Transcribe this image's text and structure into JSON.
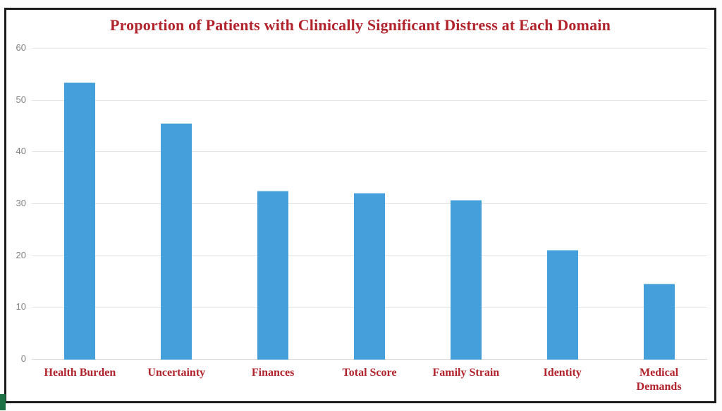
{
  "chart_data": {
    "type": "bar",
    "title": "Proportion of Patients with Clinically Significant Distress at Each Domain",
    "categories": [
      "Health Burden",
      "Uncertainty",
      "Finances",
      "Total Score",
      "Family Strain",
      "Identity",
      "Medical Demands"
    ],
    "values": [
      53.3,
      45.5,
      32.5,
      32,
      30.7,
      21,
      14.5
    ],
    "xlabel": "",
    "ylabel": "",
    "ylim": [
      0,
      60
    ],
    "yticks": [
      0,
      10,
      20,
      30,
      40,
      50,
      60
    ],
    "grid": true,
    "legend": false,
    "colors": {
      "bar_fill": "#459fdb",
      "title_text": "#b2242c",
      "category_text": "#b2242c",
      "axis_tick_text": "#7f7f7f",
      "gridline": "#e2e2e2",
      "frame_border": "#1b1b1b",
      "corner_tab": "#1e7145",
      "background": "#ffffff"
    }
  }
}
